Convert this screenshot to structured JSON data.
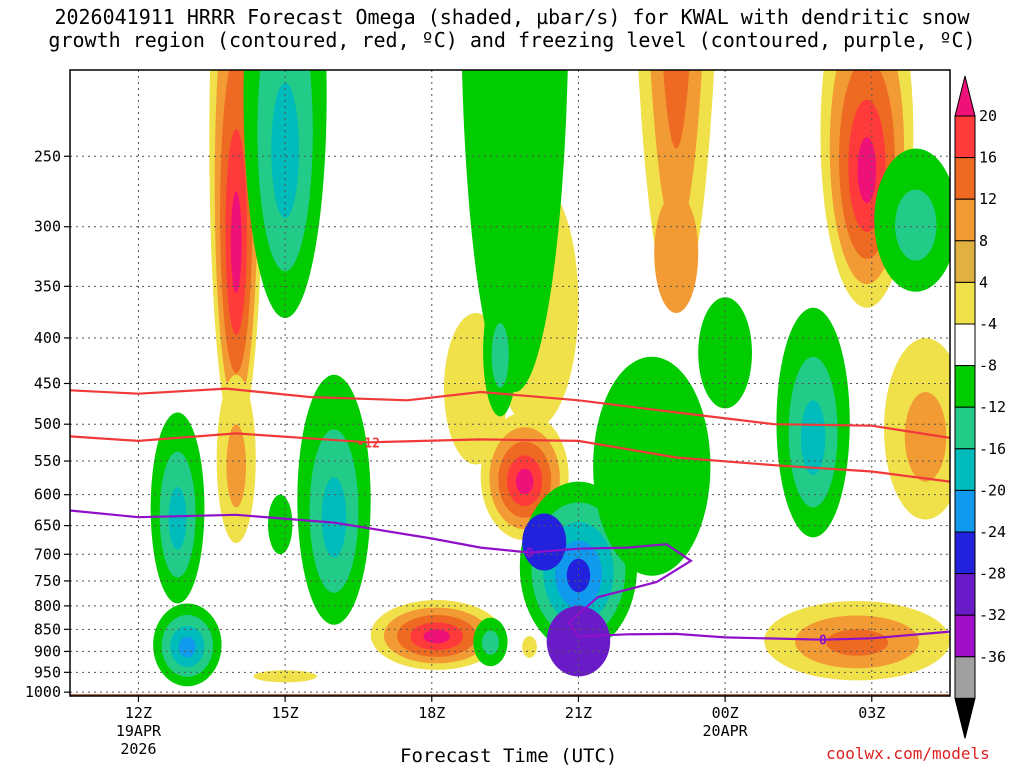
{
  "chart_data": {
    "type": "heatmap",
    "title_line1": "2026041911 HRRR Forecast Omega (shaded, µbar/s) for KWAL with dendritic snow",
    "title_line2": "growth region (contoured, red, ºC) and freezing level (contoured, purple, ºC)",
    "xlabel": "Forecast Time (UTC)",
    "ylabel": "",
    "y_axis": {
      "units": "hPa",
      "ticks": [
        250,
        300,
        350,
        400,
        450,
        500,
        550,
        600,
        650,
        700,
        750,
        800,
        850,
        900,
        950,
        1000
      ],
      "range": [
        200,
        1010
      ]
    },
    "x_axis": {
      "units": "hours from 2026041911",
      "range": [
        -0.4,
        17.6
      ],
      "ticks": [
        {
          "hour": 1,
          "label": "12Z",
          "sub1": "19APR",
          "sub2": "2026"
        },
        {
          "hour": 4,
          "label": "15Z",
          "sub1": "",
          "sub2": ""
        },
        {
          "hour": 7,
          "label": "18Z",
          "sub1": "",
          "sub2": ""
        },
        {
          "hour": 10,
          "label": "21Z",
          "sub1": "",
          "sub2": ""
        },
        {
          "hour": 13,
          "label": "00Z",
          "sub1": "20APR",
          "sub2": ""
        },
        {
          "hour": 16,
          "label": "03Z",
          "sub1": "",
          "sub2": ""
        }
      ]
    },
    "grid": true,
    "colorbar": {
      "labels": [
        "20",
        "16",
        "12",
        "8",
        "4",
        "-4",
        "-8",
        "-12",
        "-16",
        "-20",
        "-24",
        "-28",
        "-32",
        "-36"
      ],
      "colors": [
        "#ff3a3a",
        "#ee6a22",
        "#f29a33",
        "#e0b040",
        "#f0e04a",
        "#ffffff",
        "#00cc00",
        "#22cc88",
        "#00bbbb",
        "#1199ee",
        "#2222dd",
        "#6a1bc8",
        "#a010c8",
        "#a0a0a0"
      ],
      "top_color": "#ee1177",
      "bottom_color": "#000000"
    },
    "omega_features": [
      {
        "t": 3.0,
        "p": 315,
        "dt": 0.55,
        "dp": 205,
        "levels": [
          4,
          8,
          12,
          16,
          20
        ]
      },
      {
        "t": 3.0,
        "p": 560,
        "dt": 0.4,
        "dp": 120,
        "levels": [
          4,
          8
        ]
      },
      {
        "t": 12.0,
        "p": 120,
        "dt": 0.9,
        "dp": 250,
        "levels": [
          4,
          8,
          12,
          16
        ]
      },
      {
        "t": 12.0,
        "p": 325,
        "dt": 0.45,
        "dp": 50,
        "levels": [
          8
        ]
      },
      {
        "t": 15.9,
        "p": 260,
        "dt": 0.95,
        "dp": 110,
        "levels": [
          4,
          8,
          12,
          16,
          20
        ]
      },
      {
        "t": 9.1,
        "p": 385,
        "dt": 0.9,
        "dp": 120,
        "levels": [
          4
        ]
      },
      {
        "t": 9.1,
        "p": 360,
        "dt": 0.12,
        "dp": 25,
        "levels": [
          8
        ]
      },
      {
        "t": 7.9,
        "p": 465,
        "dt": 0.65,
        "dp": 90,
        "levels": [
          4
        ]
      },
      {
        "t": 8.9,
        "p": 580,
        "dt": 0.9,
        "dp": 95,
        "levels": [
          4,
          8,
          12,
          16,
          20
        ]
      },
      {
        "t": 7.1,
        "p": 866,
        "dt": 1.35,
        "dp": 78,
        "levels": [
          4,
          8,
          12,
          16,
          20
        ]
      },
      {
        "t": 17.1,
        "p": 520,
        "dt": 0.85,
        "dp": 120,
        "levels": [
          4,
          8
        ]
      },
      {
        "t": 15.7,
        "p": 880,
        "dt": 1.9,
        "dp": 90,
        "levels": [
          4,
          8,
          12
        ]
      },
      {
        "t": 4.0,
        "p": 960,
        "dt": 0.65,
        "dp": 15,
        "levels": [
          4
        ]
      },
      {
        "t": 9.0,
        "p": 890,
        "dt": 0.15,
        "dp": 25,
        "levels": [
          4
        ]
      },
      {
        "t": 1.8,
        "p": 640,
        "dt": 0.55,
        "dp": 155,
        "levels": [
          -4,
          -8,
          -12
        ]
      },
      {
        "t": 2.0,
        "p": 890,
        "dt": 0.7,
        "dp": 95,
        "levels": [
          -4,
          -8,
          -12,
          -16
        ]
      },
      {
        "t": 4.0,
        "p": 250,
        "dt": 0.85,
        "dp": 130,
        "levels": [
          -4,
          -8,
          -12
        ]
      },
      {
        "t": 3.9,
        "p": 650,
        "dt": 0.25,
        "dp": 50,
        "levels": [
          -4
        ]
      },
      {
        "t": 5.0,
        "p": 640,
        "dt": 0.75,
        "dp": 200,
        "levels": [
          -4,
          -8,
          -12
        ]
      },
      {
        "t": 8.7,
        "p": 260,
        "dt": 1.1,
        "dp": 200,
        "levels": [
          -4
        ]
      },
      {
        "t": 8.4,
        "p": 420,
        "dt": 0.35,
        "dp": 70,
        "levels": [
          -4,
          -8
        ]
      },
      {
        "t": 8.2,
        "p": 880,
        "dt": 0.35,
        "dp": 55,
        "levels": [
          -4,
          -8
        ]
      },
      {
        "t": 10.0,
        "p": 740,
        "dt": 1.2,
        "dp": 160,
        "levels": [
          -4,
          -8,
          -12,
          -16,
          -20
        ]
      },
      {
        "t": 9.3,
        "p": 680,
        "dt": 0.45,
        "dp": 50,
        "levels": [
          -20
        ]
      },
      {
        "t": 10.0,
        "p": 880,
        "dt": 0.65,
        "dp": 80,
        "levels": [
          -24
        ]
      },
      {
        "t": 11.5,
        "p": 580,
        "dt": 1.2,
        "dp": 160,
        "levels": [
          -4
        ]
      },
      {
        "t": 13.0,
        "p": 420,
        "dt": 0.55,
        "dp": 60,
        "levels": [
          -4
        ]
      },
      {
        "t": 14.8,
        "p": 520,
        "dt": 0.75,
        "dp": 150,
        "levels": [
          -4,
          -8,
          -12
        ]
      },
      {
        "t": 16.9,
        "p": 300,
        "dt": 0.85,
        "dp": 55,
        "levels": [
          -4,
          -8
        ]
      }
    ],
    "dgz_contours": [
      {
        "label": "",
        "points": [
          [
            -0.4,
            458
          ],
          [
            1.0,
            462
          ],
          [
            2.8,
            456
          ],
          [
            4.5,
            466
          ],
          [
            6.5,
            470
          ],
          [
            8.0,
            460
          ],
          [
            10.0,
            470
          ],
          [
            12.0,
            485
          ],
          [
            14.0,
            500
          ],
          [
            16.0,
            502
          ],
          [
            17.6,
            518
          ]
        ]
      },
      {
        "label": "-12",
        "label_t": 5.7,
        "points": [
          [
            -0.4,
            516
          ],
          [
            1.0,
            522
          ],
          [
            3.0,
            512
          ],
          [
            5.7,
            524
          ],
          [
            8.0,
            520
          ],
          [
            10.0,
            522
          ],
          [
            12.0,
            545
          ],
          [
            14.0,
            556
          ],
          [
            16.0,
            565
          ],
          [
            17.6,
            580
          ]
        ]
      }
    ],
    "freezing_contour": {
      "labels": [
        {
          "t": 9.0,
          "text": "0"
        },
        {
          "t": 15.0,
          "text": "0"
        }
      ],
      "points": [
        [
          -0.4,
          625
        ],
        [
          1.0,
          636
        ],
        [
          3.0,
          632
        ],
        [
          5.0,
          645
        ],
        [
          7.0,
          672
        ],
        [
          8.0,
          688
        ],
        [
          9.0,
          697
        ],
        [
          10.0,
          690
        ],
        [
          11.0,
          688
        ],
        [
          11.8,
          682
        ],
        [
          12.3,
          712
        ],
        [
          11.6,
          752
        ],
        [
          10.4,
          782
        ],
        [
          9.8,
          835
        ],
        [
          10.0,
          866
        ],
        [
          11.0,
          861
        ],
        [
          12.0,
          860
        ],
        [
          13.0,
          868
        ],
        [
          15.0,
          873
        ],
        [
          16.0,
          870
        ],
        [
          17.6,
          855
        ]
      ]
    },
    "ground": {
      "color": "#a0522d"
    }
  },
  "credit": "coolwx.com/models"
}
